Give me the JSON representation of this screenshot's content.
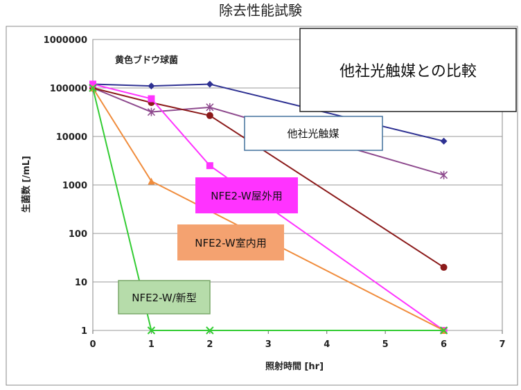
{
  "chart_data": {
    "type": "line",
    "title": "除去性能試験",
    "xlabel": "照射時間 [hr]",
    "ylabel": "生菌数 [/mL]",
    "xlim": [
      0,
      7
    ],
    "ylim": [
      1,
      1000000
    ],
    "yscale": "log",
    "grid": true,
    "xticks": [
      "0",
      "1",
      "2",
      "3",
      "4",
      "5",
      "6",
      "7"
    ],
    "yticks": [
      "1",
      "10",
      "100",
      "1000",
      "10000",
      "100000",
      "1000000"
    ],
    "annotation": "黄色ブドウ球菌",
    "callout_title": "他社光触媒との比較",
    "series": [
      {
        "name": "他社光触媒",
        "color": "#2e3192",
        "marker": "diamond",
        "x": [
          0,
          1,
          2,
          6
        ],
        "y": [
          120000,
          110000,
          120000,
          8000
        ]
      },
      {
        "name": "",
        "color": "#8e4a8e",
        "marker": "star",
        "x": [
          0,
          1,
          2,
          6
        ],
        "y": [
          100000,
          32000,
          40000,
          1600
        ]
      },
      {
        "name": "",
        "color": "#8b1a1a",
        "marker": "circle",
        "x": [
          0,
          1,
          2,
          6
        ],
        "y": [
          100000,
          50000,
          27000,
          20
        ]
      },
      {
        "name": "NFE2-W屋外用",
        "color": "#ff33ff",
        "marker": "square",
        "x": [
          0,
          1,
          2,
          6
        ],
        "y": [
          120000,
          60000,
          2500,
          1
        ]
      },
      {
        "name": "NFE2-W室内用",
        "color": "#f08c3c",
        "marker": "triangle",
        "x": [
          0,
          1,
          6
        ],
        "y": [
          100000,
          1200,
          1
        ]
      },
      {
        "name": "NFE2-W/新型",
        "color": "#33cc33",
        "marker": "cross",
        "x": [
          0,
          1,
          2,
          6
        ],
        "y": [
          100000,
          1,
          1,
          1
        ]
      }
    ],
    "labels": {
      "other": "他社光触媒",
      "outdoor": "NFE2-W屋外用",
      "indoor": "NFE2-W室内用",
      "new": "NFE2-W/新型"
    },
    "label_colors": {
      "other_bg": "#ffffff",
      "other_border": "#41719c",
      "outdoor_bg": "#ff33ff",
      "indoor_bg": "#f4a270",
      "new_bg": "#b6dcaa",
      "new_border": "#7aa86a"
    }
  }
}
